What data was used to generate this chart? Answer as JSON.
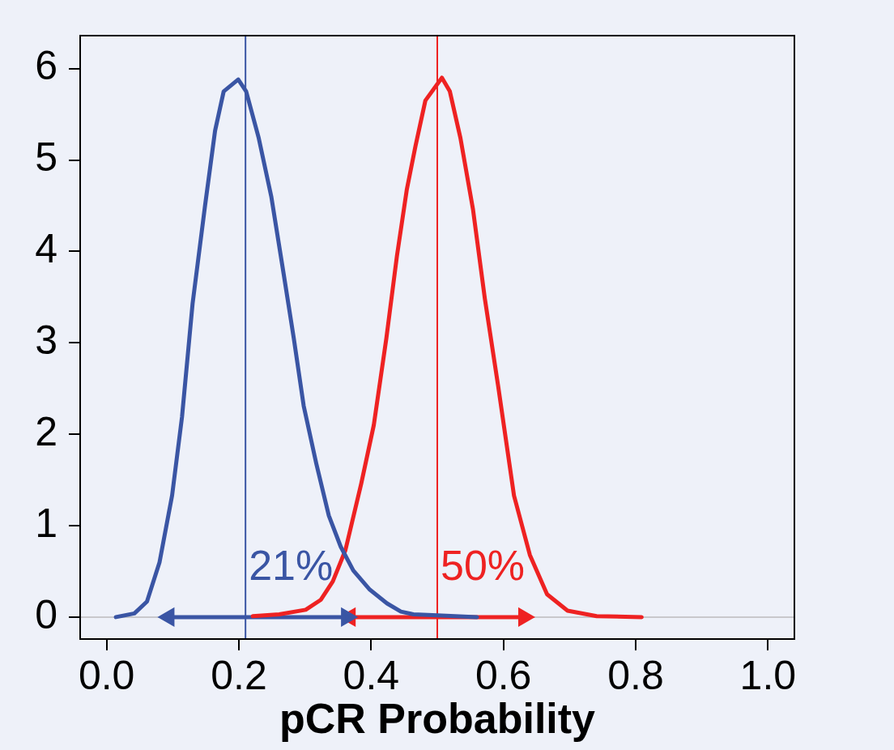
{
  "chart_data": {
    "type": "line",
    "xlabel": "pCR Probability",
    "xlim": [
      -0.04,
      1.04
    ],
    "ylim": [
      -0.24,
      6.36
    ],
    "xticks": [
      {
        "value": 0,
        "label": "0.0"
      },
      {
        "value": 0.2,
        "label": "0.2"
      },
      {
        "value": 0.4,
        "label": "0.4"
      },
      {
        "value": 0.6,
        "label": "0.6"
      },
      {
        "value": 0.8,
        "label": "0.8"
      },
      {
        "value": 1,
        "label": "1.0"
      }
    ],
    "yticks": [
      0,
      1,
      2,
      3,
      4,
      5,
      6
    ],
    "grid": false,
    "legend": false,
    "marker": "none",
    "line_style": "solid",
    "series": [
      {
        "color": "#3a55a4",
        "x": [
          0.014,
          0.042,
          0.061,
          0.08,
          0.099,
          0.114,
          0.13,
          0.149,
          0.164,
          0.177,
          0.199,
          0.211,
          0.23,
          0.249,
          0.268,
          0.283,
          0.298,
          0.317,
          0.336,
          0.354,
          0.373,
          0.398,
          0.424,
          0.445,
          0.464,
          0.5,
          0.56
        ],
        "values": [
          0,
          0.04,
          0.17,
          0.6,
          1.33,
          2.19,
          3.43,
          4.51,
          5.32,
          5.75,
          5.88,
          5.75,
          5.24,
          4.6,
          3.74,
          3.05,
          2.31,
          1.68,
          1.11,
          0.77,
          0.51,
          0.3,
          0.15,
          0.06,
          0.03,
          0.02,
          0
        ]
      },
      {
        "color": "#ee2222",
        "x": [
          0.221,
          0.261,
          0.301,
          0.324,
          0.342,
          0.361,
          0.385,
          0.404,
          0.423,
          0.439,
          0.454,
          0.467,
          0.482,
          0.507,
          0.519,
          0.535,
          0.554,
          0.572,
          0.592,
          0.616,
          0.64,
          0.666,
          0.697,
          0.741,
          0.809
        ],
        "values": [
          0.01,
          0.03,
          0.08,
          0.19,
          0.39,
          0.73,
          1.46,
          2.1,
          3.05,
          3.95,
          4.68,
          5.15,
          5.65,
          5.9,
          5.75,
          5.24,
          4.46,
          3.48,
          2.53,
          1.33,
          0.68,
          0.25,
          0.07,
          0.01,
          0
        ]
      },
      {
        "color": "#3a55a4",
        "x": [
          0.094,
          0.363
        ],
        "values": [
          0,
          0
        ],
        "marker": "triangle"
      },
      {
        "color": "#ee2222",
        "x": [
          0.368,
          0.631
        ],
        "values": [
          0,
          0
        ],
        "marker": "triangle"
      }
    ],
    "ref_lines": [
      {
        "axis": "y",
        "value": 0,
        "color": "#c8c8cc"
      },
      {
        "axis": "x",
        "value": 0.21,
        "label": "21%",
        "color": "#3a55a4"
      },
      {
        "axis": "x",
        "value": 0.5,
        "label": "50%",
        "color": "#ee2222"
      }
    ]
  }
}
